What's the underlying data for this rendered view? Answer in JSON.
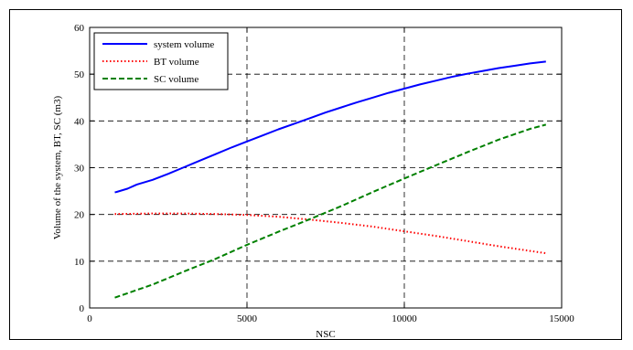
{
  "chart_data": {
    "type": "line",
    "title": "",
    "xlabel": "NSC",
    "ylabel": "Volume of the system, BT, SC (m3)",
    "xlim": [
      0,
      15000
    ],
    "ylim": [
      0,
      60
    ],
    "xticks": [
      0,
      5000,
      10000,
      15000
    ],
    "yticks": [
      0,
      10,
      20,
      30,
      40,
      50,
      60
    ],
    "xtick_labels": [
      "0",
      "5000",
      "10000",
      "15000"
    ],
    "ytick_labels": [
      "0",
      "10",
      "20",
      "30",
      "40",
      "50",
      "60"
    ],
    "grid": "dashed, major ticks",
    "legend": "top-left",
    "series": [
      {
        "name": "system volume",
        "color": "#0000ff",
        "style": "solid",
        "x": [
          800,
          1200,
          1500,
          2000,
          2500,
          3000,
          3500,
          4000,
          4500,
          5000,
          5500,
          6000,
          6500,
          7000,
          7500,
          8000,
          8500,
          9000,
          9500,
          10000,
          10500,
          11000,
          11500,
          12000,
          12500,
          13000,
          13500,
          14000,
          14500
        ],
        "y": [
          24.7,
          25.5,
          26.4,
          27.4,
          28.7,
          30.1,
          31.5,
          32.9,
          34.3,
          35.6,
          36.9,
          38.2,
          39.4,
          40.6,
          41.8,
          42.9,
          44.0,
          45.0,
          46.0,
          46.9,
          47.8,
          48.6,
          49.4,
          50.1,
          50.7,
          51.3,
          51.8,
          52.3,
          52.7
        ]
      },
      {
        "name": "BT volume",
        "color": "#ff0000",
        "style": "dotted",
        "x": [
          800,
          2000,
          3000,
          4000,
          5000,
          6000,
          7000,
          8000,
          9000,
          10000,
          11000,
          12000,
          13000,
          14000,
          14500
        ],
        "y": [
          20.1,
          20.2,
          20.2,
          20.1,
          19.9,
          19.5,
          18.9,
          18.2,
          17.4,
          16.4,
          15.4,
          14.3,
          13.2,
          12.2,
          11.7
        ]
      },
      {
        "name": "SC volume",
        "color": "#008000",
        "style": "dashed",
        "x": [
          800,
          2000,
          3000,
          4000,
          5000,
          6000,
          7000,
          8000,
          9000,
          10000,
          11000,
          12000,
          13000,
          14000,
          14500
        ],
        "y": [
          2.2,
          5.0,
          7.8,
          10.5,
          13.5,
          16.3,
          19.0,
          21.8,
          24.8,
          27.7,
          30.5,
          33.3,
          36.0,
          38.3,
          39.2
        ]
      }
    ]
  }
}
